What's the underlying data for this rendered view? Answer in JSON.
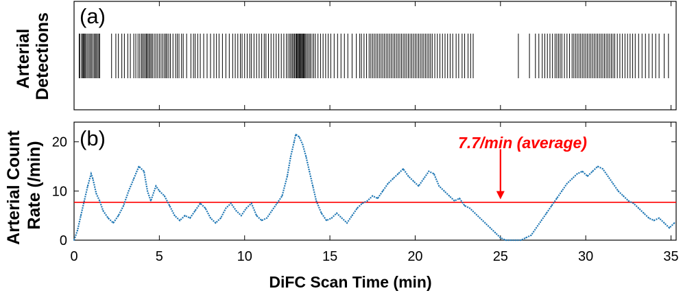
{
  "colors": {
    "rate": "#1f77b4",
    "average": "#ff0000",
    "axes": "#000000"
  },
  "chart_data": [
    {
      "panel": "a",
      "type": "event-raster",
      "panel_label": "(a)",
      "ylabel_lines": [
        "Arterial",
        "Detections"
      ],
      "xlim": [
        0,
        35.3
      ],
      "x_ticks": [
        0,
        5,
        10,
        15,
        20,
        25,
        30,
        35
      ],
      "grid": false,
      "detection_times_min": [
        0.3,
        0.33,
        0.43,
        0.5,
        0.55,
        0.6,
        0.65,
        0.72,
        0.8,
        0.88,
        0.95,
        1.02,
        1.1,
        1.18,
        1.25,
        1.3,
        1.38,
        1.45,
        1.5,
        2.2,
        2.45,
        2.6,
        2.8,
        2.95,
        3.15,
        3.3,
        3.5,
        3.62,
        3.75,
        3.85,
        3.95,
        4.02,
        4.1,
        4.18,
        4.25,
        4.3,
        4.38,
        4.45,
        4.52,
        4.6,
        4.7,
        4.8,
        4.9,
        5.0,
        5.1,
        5.2,
        5.3,
        5.38,
        5.45,
        5.55,
        5.65,
        5.8,
        5.95,
        6.05,
        6.15,
        6.3,
        6.4,
        6.6,
        6.85,
        7.0,
        7.1,
        7.25,
        7.4,
        7.6,
        7.8,
        8.0,
        8.2,
        8.35,
        8.5,
        8.7,
        8.9,
        9.1,
        9.3,
        9.45,
        9.6,
        9.75,
        9.85,
        10.0,
        10.15,
        10.3,
        10.4,
        10.55,
        10.7,
        10.85,
        11.0,
        11.15,
        11.25,
        11.4,
        11.55,
        11.7,
        11.85,
        12.0,
        12.15,
        12.3,
        12.45,
        12.55,
        12.65,
        12.72,
        12.8,
        12.87,
        12.93,
        13.0,
        13.05,
        13.1,
        13.15,
        13.2,
        13.25,
        13.3,
        13.35,
        13.4,
        13.45,
        13.5,
        13.55,
        13.62,
        13.7,
        13.78,
        13.85,
        13.95,
        14.05,
        14.15,
        14.3,
        14.45,
        14.6,
        14.75,
        14.9,
        15.05,
        15.25,
        15.45,
        15.65,
        15.85,
        16.05,
        16.3,
        16.55,
        16.75,
        16.85,
        17.0,
        17.15,
        17.3,
        17.4,
        17.5,
        17.6,
        17.7,
        17.8,
        17.9,
        18.0,
        18.1,
        18.2,
        18.3,
        18.4,
        18.5,
        18.6,
        18.7,
        18.8,
        18.9,
        19.0,
        19.1,
        19.2,
        19.3,
        19.4,
        19.5,
        19.6,
        19.7,
        19.8,
        19.9,
        20.0,
        20.1,
        20.2,
        20.3,
        20.4,
        20.5,
        20.6,
        20.7,
        20.8,
        20.9,
        21.0,
        21.15,
        21.3,
        21.45,
        21.6,
        21.75,
        21.9,
        22.05,
        22.2,
        22.4,
        22.55,
        22.75,
        22.9,
        23.1,
        23.25,
        23.4,
        26.05,
        26.7,
        27.05,
        27.25,
        27.45,
        27.6,
        27.75,
        27.9,
        28.05,
        28.2,
        28.3,
        28.4,
        28.5,
        28.6,
        28.75,
        28.9,
        29.05,
        29.2,
        29.3,
        29.4,
        29.5,
        29.6,
        29.7,
        29.8,
        29.9,
        30.0,
        30.1,
        30.2,
        30.3,
        30.4,
        30.5,
        30.6,
        30.7,
        30.8,
        30.9,
        31.0,
        31.1,
        31.2,
        31.3,
        31.4,
        31.5,
        31.6,
        31.7,
        31.85,
        32.0,
        32.15,
        32.3,
        32.45,
        32.6,
        32.75,
        32.9,
        33.1,
        33.3,
        33.5,
        33.7,
        33.9,
        34.1,
        34.3,
        34.6,
        34.85
      ]
    },
    {
      "panel": "b",
      "type": "line",
      "panel_label": "(b)",
      "ylabel_lines": [
        "Arterial Count",
        "Rate (/min)"
      ],
      "xlabel": "DiFC Scan Time (min)",
      "xlim": [
        0,
        35.3
      ],
      "ylim": [
        0,
        24
      ],
      "x_ticks": [
        0,
        5,
        10,
        15,
        20,
        25,
        30,
        35
      ],
      "y_ticks": [
        0,
        10,
        20
      ],
      "grid": false,
      "series": [
        {
          "style": "dotted",
          "x": [
            0,
            0.2,
            0.4,
            0.6,
            0.8,
            1.0,
            1.1,
            1.3,
            1.5,
            1.7,
            2.0,
            2.3,
            2.6,
            2.9,
            3.2,
            3.5,
            3.8,
            4.1,
            4.3,
            4.5,
            4.8,
            5.0,
            5.3,
            5.6,
            5.9,
            6.2,
            6.5,
            6.8,
            7.1,
            7.4,
            7.7,
            8.0,
            8.3,
            8.6,
            8.9,
            9.2,
            9.5,
            9.8,
            10.1,
            10.4,
            10.7,
            11.0,
            11.3,
            11.6,
            11.9,
            12.2,
            12.5,
            12.7,
            12.9,
            13.0,
            13.2,
            13.4,
            13.6,
            13.8,
            14.0,
            14.2,
            14.5,
            14.8,
            15.1,
            15.4,
            15.7,
            16.0,
            16.3,
            16.6,
            16.9,
            17.2,
            17.5,
            17.8,
            18.1,
            18.4,
            18.7,
            19.0,
            19.3,
            19.6,
            19.9,
            20.2,
            20.5,
            20.8,
            21.1,
            21.4,
            21.7,
            22.0,
            22.3,
            22.6,
            22.9,
            23.2,
            23.5,
            23.8,
            24.1,
            24.4,
            24.7,
            25.0,
            25.3,
            25.6,
            25.9,
            26.2,
            26.5,
            26.8,
            27.1,
            27.4,
            27.7,
            28.0,
            28.3,
            28.6,
            28.9,
            29.2,
            29.5,
            29.8,
            30.1,
            30.4,
            30.7,
            31.0,
            31.3,
            31.6,
            31.9,
            32.2,
            32.5,
            32.8,
            33.1,
            33.4,
            33.7,
            34.0,
            34.3,
            34.6,
            34.9,
            35.2
          ],
          "y": [
            0,
            2,
            5,
            8,
            11,
            13.5,
            12.5,
            9.5,
            8,
            6,
            4.5,
            3.5,
            5,
            7,
            10,
            12.5,
            15,
            14,
            10,
            8,
            11,
            10,
            9,
            7,
            5,
            4,
            5,
            4.5,
            6,
            7.5,
            6.5,
            4.5,
            3.5,
            4.5,
            6.5,
            7.5,
            6,
            5,
            6.5,
            7.5,
            5,
            4,
            4.5,
            6,
            7.5,
            9,
            13,
            17,
            20,
            21.5,
            21,
            19.5,
            17,
            14,
            11,
            8,
            5.5,
            4,
            4.5,
            5.5,
            4.5,
            3.5,
            5,
            6.5,
            7.5,
            8,
            9,
            8.5,
            10,
            11.5,
            12.5,
            13.5,
            14.5,
            13,
            12,
            11,
            12.5,
            14,
            13.5,
            11,
            10,
            9,
            8,
            8.5,
            7,
            6.5,
            5.5,
            4.5,
            3.5,
            2.5,
            1.5,
            0.5,
            0,
            0,
            0,
            0,
            0.5,
            1,
            2.5,
            4,
            5.5,
            7,
            8.5,
            10,
            11.5,
            12.5,
            13.5,
            14,
            13,
            14,
            15,
            14.5,
            13,
            11.5,
            10,
            9,
            8,
            7.5,
            6.5,
            5.5,
            4.5,
            4,
            4.5,
            3.5,
            2.5,
            3.5
          ]
        },
        {
          "name": "7.7/min (average)",
          "style": "solid",
          "x": [
            0,
            35.3
          ],
          "y": [
            7.7,
            7.7
          ]
        }
      ],
      "annotations": [
        {
          "text": "7.7/min (average)",
          "arrow_x": 25,
          "arrow_from_y": 18.5,
          "arrow_to_y": 8.3
        }
      ]
    }
  ]
}
